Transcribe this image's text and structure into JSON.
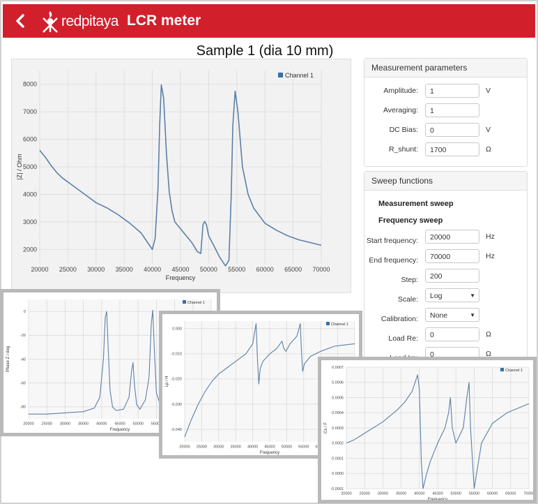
{
  "header": {
    "brand": "redpitaya",
    "title": "LCR meter",
    "accent": "#d11f2c"
  },
  "sample_title": "Sample 1 (dia 10 mm)",
  "measurement": {
    "heading": "Measurement parameters",
    "amplitude": {
      "label": "Amplitude:",
      "value": "1",
      "unit": "V"
    },
    "averaging": {
      "label": "Averaging:",
      "value": "1"
    },
    "dc_bias": {
      "label": "DC Bias:",
      "value": "0",
      "unit": "V"
    },
    "r_shunt": {
      "label": "R_shunt:",
      "value": "1700",
      "unit": "Ω"
    }
  },
  "sweep": {
    "heading": "Sweep functions",
    "measurement_sweep": "Measurement sweep",
    "frequency_sweep": "Frequency sweep",
    "start": {
      "label": "Start frequency:",
      "value": "20000",
      "unit": "Hz"
    },
    "end": {
      "label": "End frequency:",
      "value": "70000",
      "unit": "Hz"
    },
    "step": {
      "label": "Step:",
      "value": "200"
    },
    "scale": {
      "label": "Scale:",
      "value": "Log"
    },
    "calibration": {
      "label": "Calibration:",
      "value": "None"
    },
    "load_re": {
      "label": "Load Re:",
      "value": "0",
      "unit": "Ω"
    },
    "load_im": {
      "label": "Load Im:",
      "value": "0",
      "unit": "Ω"
    }
  },
  "chart_data": [
    {
      "type": "line",
      "ylabel": "|Z| / Ohm",
      "xlabel": "Frequency",
      "xlim": [
        20000,
        70000
      ],
      "ylim": [
        1500,
        8500
      ],
      "xticks": [
        20000,
        25000,
        30000,
        35000,
        40000,
        45000,
        50000,
        55000,
        60000,
        65000,
        70000
      ],
      "yticks": [
        2000,
        3000,
        4000,
        5000,
        6000,
        7000,
        8000
      ],
      "grid": true,
      "legend": "top-right",
      "color": "#5b7fa6",
      "series": [
        {
          "name": "Channel 1",
          "x": [
            20000,
            21000,
            22000,
            23000,
            24000,
            25000,
            26000,
            28000,
            30000,
            32000,
            34000,
            36000,
            38000,
            39000,
            40000,
            40500,
            41000,
            41300,
            41600,
            42000,
            42500,
            43000,
            43500,
            44000,
            46000,
            47000,
            48000,
            48600,
            49000,
            49300,
            49600,
            50000,
            51000,
            52000,
            53000,
            53600,
            54000,
            54300,
            54700,
            55200,
            56000,
            57000,
            58000,
            60000,
            62000,
            64000,
            66000,
            68000,
            70000
          ],
          "y": [
            5600,
            5350,
            5050,
            4800,
            4600,
            4450,
            4300,
            4000,
            3700,
            3500,
            3250,
            2950,
            2600,
            2300,
            2000,
            2400,
            4200,
            6500,
            7980,
            7500,
            5500,
            4100,
            3400,
            3000,
            2500,
            2250,
            1920,
            1850,
            2900,
            3020,
            2900,
            2500,
            2100,
            1700,
            1400,
            1600,
            3900,
            6500,
            7750,
            7000,
            5000,
            4000,
            3500,
            2950,
            2700,
            2500,
            2350,
            2250,
            2150
          ]
        }
      ]
    },
    {
      "type": "line",
      "ylabel": "Phase Z / deg",
      "xlabel": "Frequency",
      "xlim": [
        20000,
        70000
      ],
      "ylim": [
        -90,
        10
      ],
      "xticks": [
        20000,
        25000,
        30000,
        35000,
        40000,
        45000,
        50000,
        55000,
        60000,
        65000,
        70000
      ],
      "yticks": [
        0,
        -20,
        -40,
        -60,
        -80
      ],
      "grid": true,
      "legend": "top-right",
      "color": "#5b7fa6",
      "series": [
        {
          "name": "Channel 1",
          "x": [
            20000,
            25000,
            30000,
            35000,
            38000,
            39500,
            40500,
            41000,
            41400,
            41800,
            42300,
            43000,
            44000,
            46000,
            47500,
            48200,
            48600,
            49000,
            49600,
            50500,
            52000,
            53000,
            53600,
            54000,
            54400,
            55000,
            56000,
            58000,
            62000,
            66000,
            70000
          ],
          "y": [
            -86,
            -86,
            -85,
            -84,
            -81,
            -72,
            -40,
            -5,
            0,
            -30,
            -66,
            -80,
            -83,
            -82,
            -72,
            -50,
            -43,
            -62,
            -78,
            -82,
            -74,
            -55,
            -10,
            1,
            -30,
            -68,
            -78,
            -82,
            -83,
            -84,
            -84
          ]
        }
      ]
    },
    {
      "type": "line",
      "ylabel": "Lp / H",
      "xlabel": "Frequency",
      "xlim": [
        20000,
        70000
      ],
      "ylim": [
        -0.045,
        0.003
      ],
      "xticks": [
        20000,
        25000,
        30000,
        35000,
        40000,
        45000,
        50000,
        55000,
        60000,
        65000,
        70000
      ],
      "yticks": [
        0.0,
        -0.01,
        -0.02,
        -0.03,
        -0.04
      ],
      "grid": true,
      "legend": "top-right",
      "color": "#5b7fa6",
      "series": [
        {
          "name": "Channel 1",
          "x": [
            20000,
            22000,
            24000,
            26000,
            28000,
            30000,
            32000,
            34000,
            36000,
            38000,
            40000,
            41000,
            41400,
            41800,
            42200,
            43000,
            45000,
            47000,
            48600,
            49200,
            49800,
            51000,
            53000,
            54000,
            54300,
            54700,
            55200,
            57000,
            60000,
            64000,
            67000,
            70000
          ],
          "y": [
            -0.043,
            -0.036,
            -0.03,
            -0.025,
            -0.021,
            -0.018,
            -0.016,
            -0.014,
            -0.012,
            -0.01,
            -0.006,
            0.002,
            -0.012,
            -0.022,
            -0.016,
            -0.013,
            -0.01,
            -0.008,
            -0.005,
            -0.008,
            -0.009,
            -0.006,
            -0.003,
            0.002,
            -0.008,
            -0.017,
            -0.014,
            -0.011,
            -0.009,
            -0.007,
            -0.0065,
            -0.006
          ]
        }
      ]
    },
    {
      "type": "line",
      "ylabel": "Cs / F",
      "xlabel": "Frequency",
      "xlim": [
        20000,
        70000
      ],
      "ylim": [
        -0.0001,
        0.0007
      ],
      "xticks": [
        20000,
        25000,
        30000,
        35000,
        40000,
        45000,
        50000,
        55000,
        60000,
        65000,
        70000
      ],
      "yticks": [
        0.0007,
        0.0006,
        0.0005,
        0.0004,
        0.0003,
        0.0002,
        0.0001,
        0.0,
        -0.0001
      ],
      "grid": true,
      "legend": "top-right",
      "color": "#5b7fa6",
      "series": [
        {
          "name": "Channel 1",
          "x": [
            20000,
            22000,
            24000,
            26000,
            28000,
            30000,
            32000,
            34000,
            36000,
            38000,
            39500,
            40000,
            40500,
            41000,
            42000,
            43000,
            45000,
            47000,
            48000,
            48500,
            49000,
            50000,
            52000,
            53000,
            53600,
            54000,
            55000,
            57000,
            60000,
            64000,
            67000,
            70000
          ],
          "y": [
            0.0002,
            0.00022,
            0.00025,
            0.00028,
            0.00031,
            0.00034,
            0.00038,
            0.00042,
            0.00047,
            0.00054,
            0.00065,
            0.00055,
            0.0001,
            -0.0001,
            0.0,
            8e-05,
            0.0002,
            0.0003,
            0.0004,
            0.0005,
            0.0003,
            0.0002,
            0.0003,
            0.0005,
            0.0006,
            0.0003,
            -0.0001,
            0.0002,
            0.00033,
            0.0004,
            0.00043,
            0.00046
          ]
        }
      ]
    }
  ]
}
